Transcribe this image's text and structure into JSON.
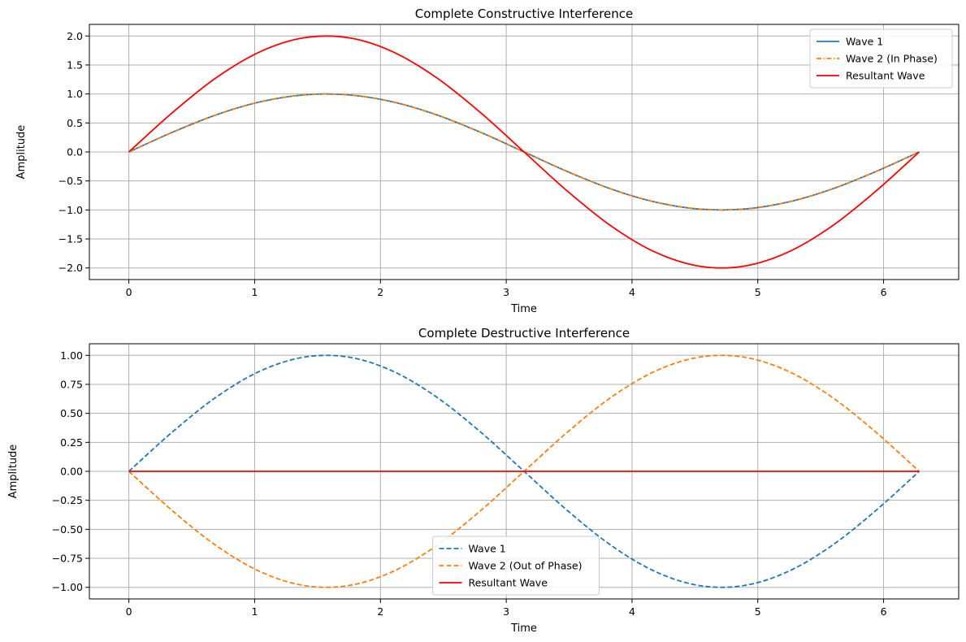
{
  "chart_data": [
    {
      "type": "line",
      "title": "Complete Constructive Interference",
      "xlabel": "Time",
      "ylabel": "Amplitude",
      "xlim": [
        -0.314,
        6.597
      ],
      "ylim": [
        -2.2,
        2.2
      ],
      "xticks": [
        0,
        1,
        2,
        3,
        4,
        5,
        6
      ],
      "xtick_labels": [
        "0",
        "1",
        "2",
        "3",
        "4",
        "5",
        "6"
      ],
      "yticks": [
        -2.0,
        -1.5,
        -1.0,
        -0.5,
        0.0,
        0.5,
        1.0,
        1.5,
        2.0
      ],
      "ytick_labels": [
        "−2.0",
        "−1.5",
        "−1.0",
        "−0.5",
        "0.0",
        "0.5",
        "1.0",
        "1.5",
        "2.0"
      ],
      "grid": true,
      "legend_position": "top-right",
      "x": [
        0,
        0.349,
        0.698,
        1.047,
        1.396,
        1.745,
        2.094,
        2.443,
        2.793,
        3.142,
        3.491,
        3.84,
        4.189,
        4.538,
        4.887,
        5.236,
        5.585,
        5.934,
        6.283
      ],
      "series": [
        {
          "name": "Wave 1",
          "color": "#1f77b4",
          "style": "solid",
          "values": [
            0,
            0.342,
            0.643,
            0.866,
            0.985,
            0.985,
            0.866,
            0.643,
            0.342,
            0,
            -0.342,
            -0.643,
            -0.866,
            -0.985,
            -0.985,
            -0.866,
            -0.643,
            -0.342,
            0
          ]
        },
        {
          "name": "Wave 2 (In Phase)",
          "color": "#ff7f0e",
          "style": "dashdot",
          "values": [
            0,
            0.342,
            0.643,
            0.866,
            0.985,
            0.985,
            0.866,
            0.643,
            0.342,
            0,
            -0.342,
            -0.643,
            -0.866,
            -0.985,
            -0.985,
            -0.866,
            -0.643,
            -0.342,
            0
          ]
        },
        {
          "name": "Resultant Wave",
          "color": "#ff0000",
          "style": "solid",
          "values": [
            0,
            0.684,
            1.286,
            1.732,
            1.97,
            1.97,
            1.732,
            1.286,
            0.684,
            0,
            -0.684,
            -1.286,
            -1.732,
            -1.97,
            -1.97,
            -1.732,
            -1.286,
            -0.684,
            0
          ]
        }
      ]
    },
    {
      "type": "line",
      "title": "Complete Destructive Interference",
      "xlabel": "Time",
      "ylabel": "Amplitude",
      "xlim": [
        -0.314,
        6.597
      ],
      "ylim": [
        -1.1,
        1.1
      ],
      "xticks": [
        0,
        1,
        2,
        3,
        4,
        5,
        6
      ],
      "xtick_labels": [
        "0",
        "1",
        "2",
        "3",
        "4",
        "5",
        "6"
      ],
      "yticks": [
        -1.0,
        -0.75,
        -0.5,
        -0.25,
        0.0,
        0.25,
        0.5,
        0.75,
        1.0
      ],
      "ytick_labels": [
        "−1.00",
        "−0.75",
        "−0.50",
        "−0.25",
        "0.00",
        "0.25",
        "0.50",
        "0.75",
        "1.00"
      ],
      "grid": true,
      "legend_position": "bottom-center",
      "x": [
        0,
        0.349,
        0.698,
        1.047,
        1.396,
        1.745,
        2.094,
        2.443,
        2.793,
        3.142,
        3.491,
        3.84,
        4.189,
        4.538,
        4.887,
        5.236,
        5.585,
        5.934,
        6.283
      ],
      "series": [
        {
          "name": "Wave 1",
          "color": "#1f77b4",
          "style": "dashed",
          "values": [
            0,
            0.342,
            0.643,
            0.866,
            0.985,
            0.985,
            0.866,
            0.643,
            0.342,
            0,
            -0.342,
            -0.643,
            -0.866,
            -0.985,
            -0.985,
            -0.866,
            -0.643,
            -0.342,
            0
          ]
        },
        {
          "name": "Wave 2 (Out of Phase)",
          "color": "#ff7f0e",
          "style": "dashed",
          "values": [
            0,
            -0.342,
            -0.643,
            -0.866,
            -0.985,
            -0.985,
            -0.866,
            -0.643,
            -0.342,
            0,
            0.342,
            0.643,
            0.866,
            0.985,
            0.985,
            0.866,
            0.643,
            0.342,
            0
          ]
        },
        {
          "name": "Resultant Wave",
          "color": "#ff0000",
          "style": "solid",
          "values": [
            0,
            0,
            0,
            0,
            0,
            0,
            0,
            0,
            0,
            0,
            0,
            0,
            0,
            0,
            0,
            0,
            0,
            0,
            0
          ]
        }
      ]
    }
  ]
}
